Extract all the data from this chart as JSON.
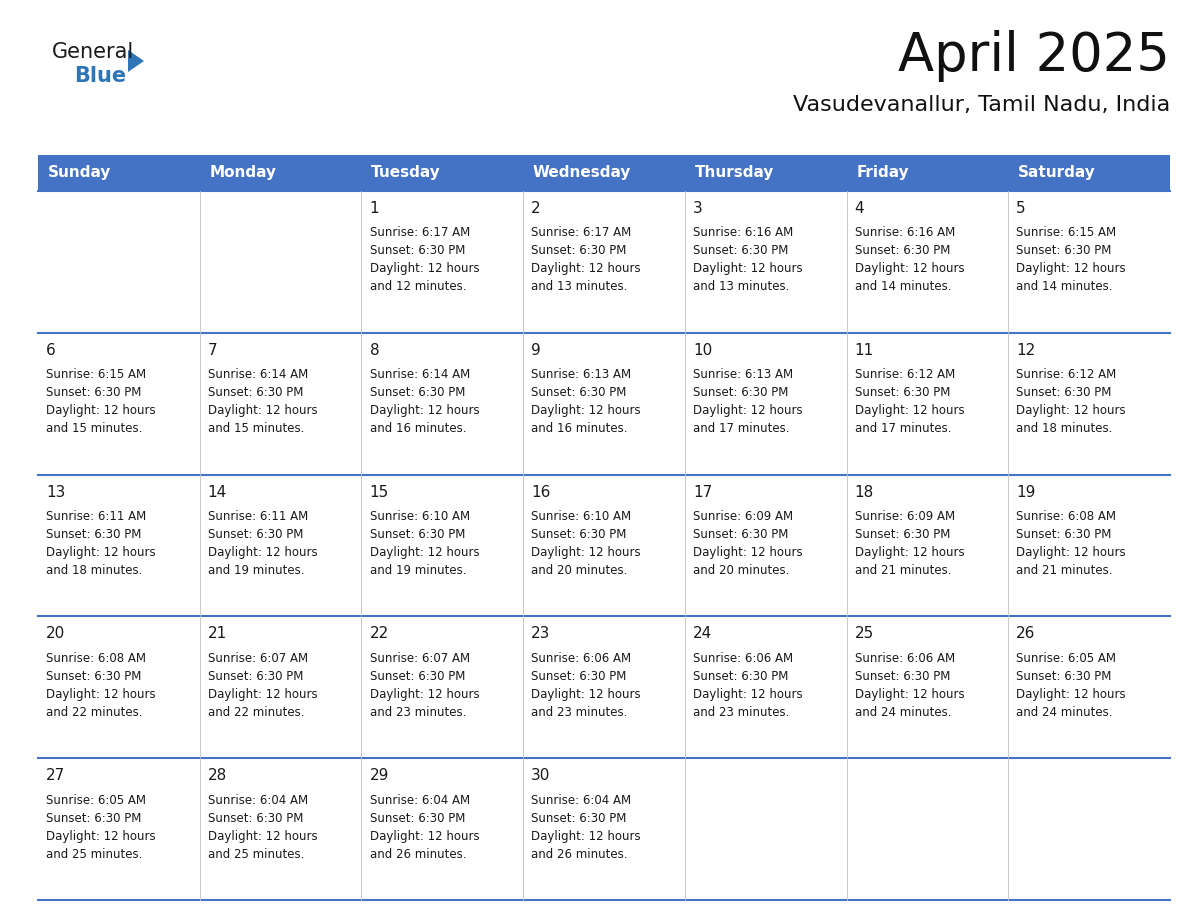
{
  "title": "April 2025",
  "subtitle": "Vasudevanallur, Tamil Nadu, India",
  "header_bg_color": "#4472C4",
  "header_text_color": "#FFFFFF",
  "border_color": "#4472C4",
  "row_line_color": "#4472C4",
  "cell_text_color": "#1a1a1a",
  "day_headers": [
    "Sunday",
    "Monday",
    "Tuesday",
    "Wednesday",
    "Thursday",
    "Friday",
    "Saturday"
  ],
  "weeks": [
    [
      {
        "day": "",
        "info": ""
      },
      {
        "day": "",
        "info": ""
      },
      {
        "day": "1",
        "info": "Sunrise: 6:17 AM\nSunset: 6:30 PM\nDaylight: 12 hours\nand 12 minutes."
      },
      {
        "day": "2",
        "info": "Sunrise: 6:17 AM\nSunset: 6:30 PM\nDaylight: 12 hours\nand 13 minutes."
      },
      {
        "day": "3",
        "info": "Sunrise: 6:16 AM\nSunset: 6:30 PM\nDaylight: 12 hours\nand 13 minutes."
      },
      {
        "day": "4",
        "info": "Sunrise: 6:16 AM\nSunset: 6:30 PM\nDaylight: 12 hours\nand 14 minutes."
      },
      {
        "day": "5",
        "info": "Sunrise: 6:15 AM\nSunset: 6:30 PM\nDaylight: 12 hours\nand 14 minutes."
      }
    ],
    [
      {
        "day": "6",
        "info": "Sunrise: 6:15 AM\nSunset: 6:30 PM\nDaylight: 12 hours\nand 15 minutes."
      },
      {
        "day": "7",
        "info": "Sunrise: 6:14 AM\nSunset: 6:30 PM\nDaylight: 12 hours\nand 15 minutes."
      },
      {
        "day": "8",
        "info": "Sunrise: 6:14 AM\nSunset: 6:30 PM\nDaylight: 12 hours\nand 16 minutes."
      },
      {
        "day": "9",
        "info": "Sunrise: 6:13 AM\nSunset: 6:30 PM\nDaylight: 12 hours\nand 16 minutes."
      },
      {
        "day": "10",
        "info": "Sunrise: 6:13 AM\nSunset: 6:30 PM\nDaylight: 12 hours\nand 17 minutes."
      },
      {
        "day": "11",
        "info": "Sunrise: 6:12 AM\nSunset: 6:30 PM\nDaylight: 12 hours\nand 17 minutes."
      },
      {
        "day": "12",
        "info": "Sunrise: 6:12 AM\nSunset: 6:30 PM\nDaylight: 12 hours\nand 18 minutes."
      }
    ],
    [
      {
        "day": "13",
        "info": "Sunrise: 6:11 AM\nSunset: 6:30 PM\nDaylight: 12 hours\nand 18 minutes."
      },
      {
        "day": "14",
        "info": "Sunrise: 6:11 AM\nSunset: 6:30 PM\nDaylight: 12 hours\nand 19 minutes."
      },
      {
        "day": "15",
        "info": "Sunrise: 6:10 AM\nSunset: 6:30 PM\nDaylight: 12 hours\nand 19 minutes."
      },
      {
        "day": "16",
        "info": "Sunrise: 6:10 AM\nSunset: 6:30 PM\nDaylight: 12 hours\nand 20 minutes."
      },
      {
        "day": "17",
        "info": "Sunrise: 6:09 AM\nSunset: 6:30 PM\nDaylight: 12 hours\nand 20 minutes."
      },
      {
        "day": "18",
        "info": "Sunrise: 6:09 AM\nSunset: 6:30 PM\nDaylight: 12 hours\nand 21 minutes."
      },
      {
        "day": "19",
        "info": "Sunrise: 6:08 AM\nSunset: 6:30 PM\nDaylight: 12 hours\nand 21 minutes."
      }
    ],
    [
      {
        "day": "20",
        "info": "Sunrise: 6:08 AM\nSunset: 6:30 PM\nDaylight: 12 hours\nand 22 minutes."
      },
      {
        "day": "21",
        "info": "Sunrise: 6:07 AM\nSunset: 6:30 PM\nDaylight: 12 hours\nand 22 minutes."
      },
      {
        "day": "22",
        "info": "Sunrise: 6:07 AM\nSunset: 6:30 PM\nDaylight: 12 hours\nand 23 minutes."
      },
      {
        "day": "23",
        "info": "Sunrise: 6:06 AM\nSunset: 6:30 PM\nDaylight: 12 hours\nand 23 minutes."
      },
      {
        "day": "24",
        "info": "Sunrise: 6:06 AM\nSunset: 6:30 PM\nDaylight: 12 hours\nand 23 minutes."
      },
      {
        "day": "25",
        "info": "Sunrise: 6:06 AM\nSunset: 6:30 PM\nDaylight: 12 hours\nand 24 minutes."
      },
      {
        "day": "26",
        "info": "Sunrise: 6:05 AM\nSunset: 6:30 PM\nDaylight: 12 hours\nand 24 minutes."
      }
    ],
    [
      {
        "day": "27",
        "info": "Sunrise: 6:05 AM\nSunset: 6:30 PM\nDaylight: 12 hours\nand 25 minutes."
      },
      {
        "day": "28",
        "info": "Sunrise: 6:04 AM\nSunset: 6:30 PM\nDaylight: 12 hours\nand 25 minutes."
      },
      {
        "day": "29",
        "info": "Sunrise: 6:04 AM\nSunset: 6:30 PM\nDaylight: 12 hours\nand 26 minutes."
      },
      {
        "day": "30",
        "info": "Sunrise: 6:04 AM\nSunset: 6:30 PM\nDaylight: 12 hours\nand 26 minutes."
      },
      {
        "day": "",
        "info": ""
      },
      {
        "day": "",
        "info": ""
      },
      {
        "day": "",
        "info": ""
      }
    ]
  ],
  "logo_general_color": "#1a1a1a",
  "logo_blue_color": "#2e75b6",
  "logo_triangle_color": "#2e75b6",
  "title_fontsize": 38,
  "subtitle_fontsize": 16,
  "header_fontsize": 11,
  "day_num_fontsize": 11,
  "cell_info_fontsize": 8.5
}
